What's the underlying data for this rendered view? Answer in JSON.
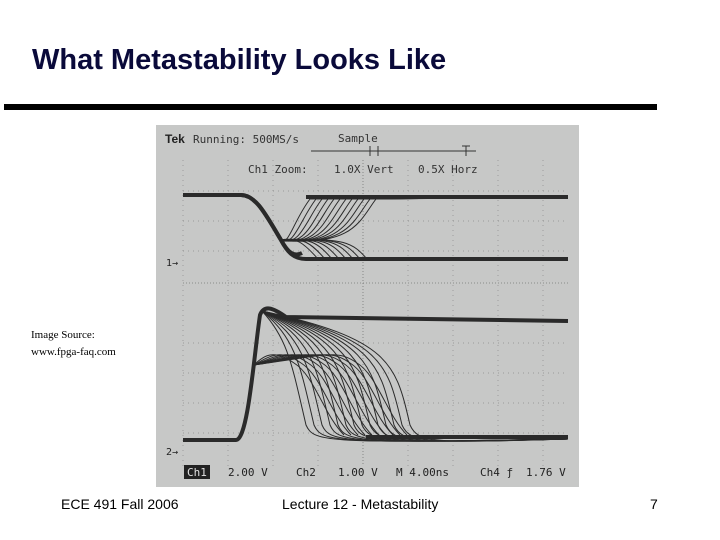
{
  "slide": {
    "title": "What Metastability Looks Like",
    "image_source_label": "Image Source:",
    "image_source_url": "www.fpga-faq.com"
  },
  "scope": {
    "brand": "Tek",
    "status": "Running: 500MS/s",
    "acq_mode": "Sample",
    "zoom_label": "Ch1 Zoom:",
    "zoom_vert": "1.0X Vert",
    "zoom_horz": "0.5X Horz",
    "ch1_marker": "1→",
    "ch2_marker": "2→",
    "ch1_label": "Ch1",
    "ch1_scale": "2.00 V",
    "ch2_label": "Ch2",
    "ch2_scale": "1.00 V",
    "timebase": "M 4.00ns",
    "trigger": "Ch4 ƒ",
    "trigger_level": "1.76 V",
    "trace_color": "#2a2a2a",
    "screen_color": "#c7c8c7"
  },
  "footer": {
    "course": "ECE 491 Fall 2006",
    "lecture": "Lecture 12 - Metastability",
    "page": "7"
  }
}
